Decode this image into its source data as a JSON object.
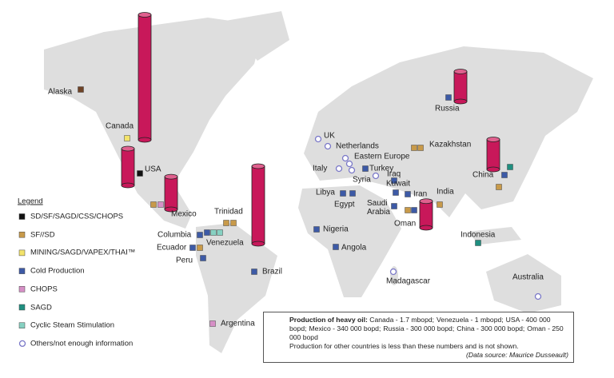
{
  "places": [
    "Alaska",
    "Canada",
    "USA",
    "Mexico",
    "Trinidad",
    "Columbia",
    "Venezuela",
    "Ecuador",
    "Peru",
    "Brazil",
    "Argentina",
    "UK",
    "Netherlands",
    "Eastern Europe",
    "Italy",
    "Turkey",
    "Syria",
    "Iraq",
    "Kuwait",
    "Iran",
    "Libya",
    "Egypt",
    "Saudi Arabia",
    "Oman",
    "Kazakhstan",
    "India",
    "China",
    "Russia",
    "Nigeria",
    "Angola",
    "Indonesia",
    "Madagascar",
    "Australia"
  ],
  "legend": {
    "title": "Legend",
    "items": [
      {
        "label": "SD/SF/SAGD/CSS/CHOPS",
        "color": "#111111"
      },
      {
        "label": "SF//SD",
        "color": "#c89a4a"
      },
      {
        "label": "MINING/SAGD/VAPEX/THAI™",
        "color": "#f3e36a"
      },
      {
        "label": "Cold Production",
        "color": "#3d5aa6"
      },
      {
        "label": "CHOPS",
        "color": "#d68fc6"
      },
      {
        "label": "SAGD",
        "color": "#1f8f80"
      },
      {
        "label": "Cyclic Steam Stimulation",
        "color": "#86d1c2"
      },
      {
        "label": "Others/not enough information",
        "color": "#7a78c8"
      }
    ]
  },
  "note": {
    "heading": "Production of heavy oil:",
    "items": [
      {
        "text": "Canada - 1.7 mbopd;",
        "value": 1700000
      },
      {
        "text": "Venezuela - 1 mbopd;",
        "value": 1000000
      },
      {
        "text": "USA - 400 000 bopd;",
        "value": 400000
      },
      {
        "text": "Mexico - 340 000 bopd;",
        "value": 340000
      },
      {
        "text": "Russia - 300 000 bopd;",
        "value": 300000
      },
      {
        "text": "China - 300 000 bopd;",
        "value": 300000
      },
      {
        "text": "Oman - 250 000 bopd",
        "value": 250000
      }
    ],
    "footer": "Production for other countries is less than these numbers and is not shown.",
    "source": "(Data source: Maurice Dusseault)"
  }
}
